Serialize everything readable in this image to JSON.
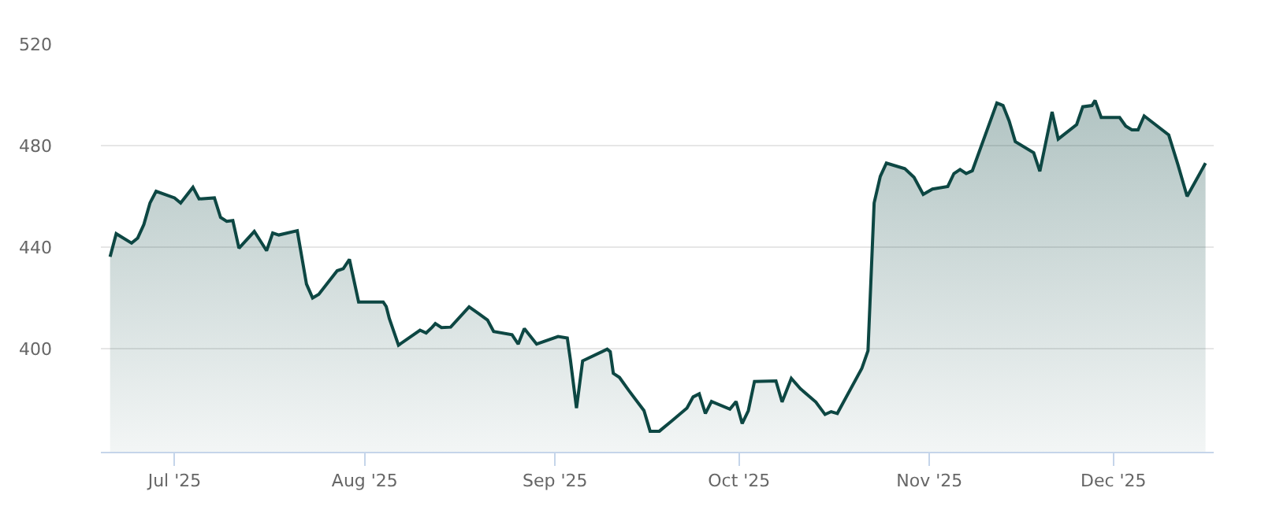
{
  "chart_data": {
    "type": "area",
    "x": [
      "2025-06-20T12:00",
      "2025-06-21T12:00",
      "2025-06-24",
      "2025-06-25",
      "2025-06-26",
      "2025-06-27",
      "2025-06-28",
      "2025-07-01",
      "2025-07-02",
      "2025-07-04",
      "2025-07-05",
      "2025-07-07T12:00",
      "2025-07-08T12:00",
      "2025-07-09T12:00",
      "2025-07-10T12:00",
      "2025-07-11T12:00",
      "2025-07-14",
      "2025-07-16",
      "2025-07-17",
      "2025-07-18",
      "2025-07-21",
      "2025-07-22T12:00",
      "2025-07-23T12:00",
      "2025-07-24T12:00",
      "2025-07-27T12:00",
      "2025-07-28T12:00",
      "2025-07-29T12:00",
      "2025-07-31",
      "2025-08-04",
      "2025-08-04T12:00",
      "2025-08-05",
      "2025-08-06T12:00",
      "2025-08-10",
      "2025-08-11",
      "2025-08-12",
      "2025-08-12T12:00",
      "2025-08-13T12:00",
      "2025-08-15",
      "2025-08-18",
      "2025-08-19T12:00",
      "2025-08-21",
      "2025-08-22",
      "2025-08-25",
      "2025-08-26",
      "2025-08-27",
      "2025-08-29",
      "2025-09-01T12:00",
      "2025-09-03",
      "2025-09-03T12:00",
      "2025-09-04T12:00",
      "2025-09-05T12:00",
      "2025-09-09T12:00",
      "2025-09-10",
      "2025-09-10T12:00",
      "2025-09-11T12:00",
      "2025-09-13",
      "2025-09-15T12:00",
      "2025-09-16T12:00",
      "2025-09-18",
      "2025-09-18T12:00",
      "2025-09-20",
      "2025-09-22T12:00",
      "2025-09-23T12:00",
      "2025-09-24T12:00",
      "2025-09-25T12:00",
      "2025-09-26T12:00",
      "2025-09-29T12:00",
      "2025-09-30T12:00",
      "2025-10-01T12:00",
      "2025-10-02T12:00",
      "2025-10-03T12:00",
      "2025-10-07",
      "2025-10-08",
      "2025-10-09T12:00",
      "2025-10-11",
      "2025-10-13T12:00",
      "2025-10-15",
      "2025-10-16",
      "2025-10-17",
      "2025-10-21",
      "2025-10-22",
      "2025-10-23",
      "2025-10-24",
      "2025-10-25",
      "2025-10-28",
      "2025-10-29T12:00",
      "2025-10-31",
      "2025-11-01T12:00",
      "2025-11-04",
      "2025-11-05",
      "2025-11-06",
      "2025-11-07",
      "2025-11-08",
      "2025-11-12",
      "2025-11-13",
      "2025-11-14",
      "2025-11-15",
      "2025-11-18",
      "2025-11-19",
      "2025-11-21",
      "2025-11-22",
      "2025-11-25",
      "2025-11-26",
      "2025-11-27T12:00",
      "2025-11-28",
      "2025-11-29",
      "2025-12-02",
      "2025-12-03",
      "2025-12-04",
      "2025-12-05",
      "2025-12-06",
      "2025-12-10",
      "2025-12-11T12:00",
      "2025-12-13",
      "2025-12-16"
    ],
    "series": [
      {
        "color": "#0d4743",
        "values": [
          436.2,
          445.3,
          441.6,
          443.6,
          448.9,
          457.4,
          462,
          459.4,
          457.4,
          463.6,
          459,
          459.4,
          451.7,
          450.2,
          450.5,
          439.6,
          446.2,
          438.6,
          445.6,
          444.8,
          446.5,
          425.5,
          420,
          421.4,
          430.7,
          431.5,
          435.2,
          418.4,
          418.4,
          416.6,
          411.9,
          401.4,
          407.3,
          406.2,
          408.5,
          409.9,
          408.3,
          408.5,
          416.5,
          413.9,
          411.3,
          406.8,
          405.5,
          401.8,
          407.9,
          401.8,
          404.8,
          404.2,
          395.8,
          376.6,
          395.2,
          399.8,
          398.8,
          390.3,
          388.7,
          383.6,
          375.6,
          367.5,
          367.5,
          368.5,
          371.5,
          376.6,
          381,
          382.2,
          374.5,
          379.2,
          376.2,
          379.2,
          370.5,
          375.6,
          387.1,
          387.3,
          379,
          388.3,
          384.2,
          379,
          374.1,
          375.2,
          374.5,
          392.3,
          399.2,
          457.4,
          467.9,
          473.1,
          470.9,
          467.5,
          460.8,
          462.9,
          463.9,
          469,
          470.6,
          469,
          470.1,
          496.8,
          495.8,
          489.7,
          481.6,
          477.2,
          469.9,
          493.3,
          482.6,
          488.3,
          495.3,
          495.8,
          497.8,
          491.1,
          491.1,
          487.7,
          486.2,
          486.2,
          491.7,
          484.2,
          472.5,
          460,
          473.1
        ]
      }
    ],
    "xlim": [
      "2025-06-19",
      "2025-12-17T08:00"
    ],
    "xticks": [
      {
        "value": "2025-07-01",
        "label": "Jul '25"
      },
      {
        "value": "2025-08-01",
        "label": "Aug '25"
      },
      {
        "value": "2025-09-01",
        "label": "Sep '25"
      },
      {
        "value": "2025-10-01",
        "label": "Oct '25"
      },
      {
        "value": "2025-11-01",
        "label": "Nov '25"
      },
      {
        "value": "2025-12-01",
        "label": "Dec '25"
      }
    ],
    "ylim": [
      359.4,
      520
    ],
    "yticks": [
      400,
      440,
      480,
      520
    ],
    "grid": "y"
  }
}
